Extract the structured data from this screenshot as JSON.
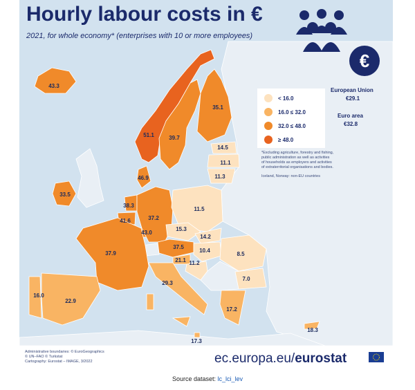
{
  "header": {
    "title": "Hourly labour costs in €",
    "subtitle": "2021, for whole economy* (enterprises with 10 or more employees)"
  },
  "legend": [
    {
      "label": "< 16.0",
      "color": "#fde2bf"
    },
    {
      "label": "16.0 ≤ 32.0",
      "color": "#f9b463"
    },
    {
      "label": "32.0 ≤ 48.0",
      "color": "#f08a2a"
    },
    {
      "label": "≥ 48.0",
      "color": "#e8631f"
    }
  ],
  "aggregates": [
    {
      "name": "European Union",
      "value": "€29.1"
    },
    {
      "name": "Euro area",
      "value": "€32.8"
    }
  ],
  "footnote": [
    "*Excluding agriculture, forestry and fishing,",
    "public administration as well as activities",
    "of households as employers and activities",
    "of extraterritorial organisations and bodies.",
    "Iceland, Norway: non-EU countries"
  ],
  "map": {
    "regions": [
      {
        "value": "43.3",
        "color": "#f08a2a"
      },
      {
        "value": "51.1",
        "color": "#e8631f"
      },
      {
        "value": "39.7",
        "color": "#f08a2a"
      },
      {
        "value": "35.1",
        "color": "#f08a2a"
      },
      {
        "value": "14.5",
        "color": "#fde2bf"
      },
      {
        "value": "11.1",
        "color": "#fde2bf"
      },
      {
        "value": "11.3",
        "color": "#fde2bf"
      },
      {
        "value": "46.9",
        "color": "#f08a2a"
      },
      {
        "value": "33.5",
        "color": "#f08a2a"
      },
      {
        "value": "38.3",
        "color": "#f08a2a"
      },
      {
        "value": "41.6",
        "color": "#f08a2a"
      },
      {
        "value": "43.0",
        "color": "#f08a2a"
      },
      {
        "value": "37.2",
        "color": "#f08a2a"
      },
      {
        "value": "11.5",
        "color": "#fde2bf"
      },
      {
        "value": "15.3",
        "color": "#fde2bf"
      },
      {
        "value": "14.2",
        "color": "#fde2bf"
      },
      {
        "value": "37.5",
        "color": "#f08a2a"
      },
      {
        "value": "10.4",
        "color": "#fde2bf"
      },
      {
        "value": "21.1",
        "color": "#f9b463"
      },
      {
        "value": "11.2",
        "color": "#fde2bf"
      },
      {
        "value": "8.5",
        "color": "#fde2bf"
      },
      {
        "value": "7.0",
        "color": "#fde2bf"
      },
      {
        "value": "37.9",
        "color": "#f08a2a"
      },
      {
        "value": "29.3",
        "color": "#f9b463"
      },
      {
        "value": "22.9",
        "color": "#f9b463"
      },
      {
        "value": "16.0",
        "color": "#f9b463"
      },
      {
        "value": "17.2",
        "color": "#f9b463"
      },
      {
        "value": "17.3",
        "color": "#f9b463"
      },
      {
        "value": "18.3",
        "color": "#f9b463"
      }
    ]
  },
  "credits": [
    "Administrative boundaries: © EuroGeographics",
    "© UN–FAO © Turkstat",
    "Cartography: Eurostat – IMAGE, 3/2022"
  ],
  "brand": {
    "domain": "ec.europa.eu/",
    "name": "eurostat"
  },
  "source": {
    "label": "Source dataset:",
    "link": "lc_lci_lev"
  }
}
